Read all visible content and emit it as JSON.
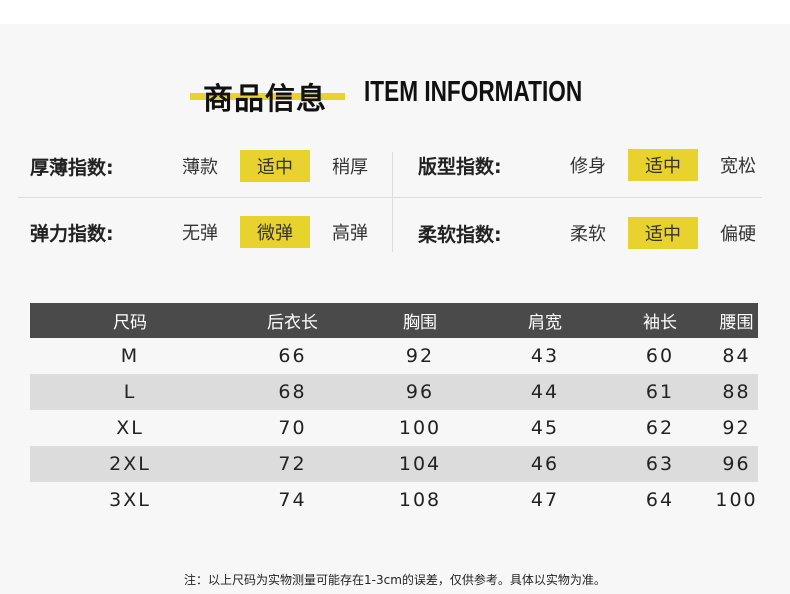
{
  "title": {
    "cn": "商品信息",
    "en": "ITEM INFORMATION"
  },
  "accent_color": "#e8d22e",
  "indices": [
    {
      "label": "厚薄指数:",
      "options": [
        "薄款",
        "适中",
        "稍厚"
      ],
      "selected": 1
    },
    {
      "label": "版型指数:",
      "options": [
        "修身",
        "适中",
        "宽松"
      ],
      "selected": 1
    },
    {
      "label": "弹力指数:",
      "options": [
        "无弹",
        "微弹",
        "高弹"
      ],
      "selected": 1
    },
    {
      "label": "柔软指数:",
      "options": [
        "柔软",
        "适中",
        "偏硬"
      ],
      "selected": 1
    }
  ],
  "size_table": {
    "headers": [
      "尺码",
      "后衣长",
      "胸围",
      "肩宽",
      "袖长",
      "腰围"
    ],
    "rows": [
      [
        "M",
        "66",
        "92",
        "43",
        "60",
        "84"
      ],
      [
        "L",
        "68",
        "96",
        "44",
        "61",
        "88"
      ],
      [
        "XL",
        "70",
        "100",
        "45",
        "62",
        "92"
      ],
      [
        "2XL",
        "72",
        "104",
        "46",
        "63",
        "96"
      ],
      [
        "3XL",
        "74",
        "108",
        "47",
        "64",
        "100"
      ]
    ]
  },
  "note": "注：以上尺码为实物测量可能存在1-3cm的误差，仅供参考。具体以实物为准。"
}
